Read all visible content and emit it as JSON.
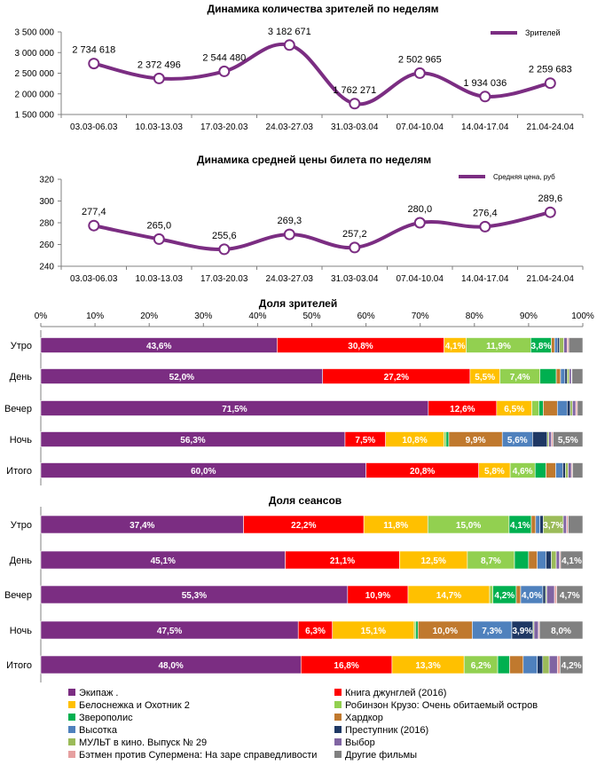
{
  "colors": {
    "line": "#7B2D82",
    "grid": "#d9d9d9",
    "axis": "#808080",
    "text": "#000000",
    "white": "#ffffff"
  },
  "films": [
    {
      "name": "Экипаж .",
      "color": "#7B2D82"
    },
    {
      "name": "Книга джунглей (2016)",
      "color": "#FF0000"
    },
    {
      "name": "Белоснежка и Охотник 2",
      "color": "#FFC000"
    },
    {
      "name": "Робинзон Крузо: Очень обитаемый остров",
      "color": "#92D050"
    },
    {
      "name": "Зверополис",
      "color": "#00B050"
    },
    {
      "name": "Хардкор",
      "color": "#C0792E"
    },
    {
      "name": "Высотка",
      "color": "#4F81BD"
    },
    {
      "name": "Преступник (2016)",
      "color": "#1F3864"
    },
    {
      "name": "МУЛЬТ в кино. Выпуск № 29",
      "color": "#9BBB59"
    },
    {
      "name": "Выбор",
      "color": "#8064A2"
    },
    {
      "name": "Бэтмен против Супермена: На заре справедливости",
      "color": "#E6A0A0"
    },
    {
      "name": "Другие фильмы",
      "color": "#808080"
    }
  ],
  "chart_data": [
    {
      "type": "line",
      "title": "Динамика количества зрителей по неделям",
      "legend": "Зрителей",
      "legend_position": "top-right",
      "categories": [
        "03.03-06.03",
        "10.03-13.03",
        "17.03-20.03",
        "24.03-27.03",
        "31.03-03.04",
        "07.04-10.04",
        "14.04-17.04",
        "21.04-24.04"
      ],
      "values": [
        2734618,
        2372496,
        2544480,
        3182671,
        1762271,
        2502965,
        1934036,
        2259683
      ],
      "labels": [
        "2 734 618",
        "2 372 496",
        "2 544 480",
        "3 182 671",
        "1 762 271",
        "2 502 965",
        "1 934 036",
        "2 259 683"
      ],
      "ylim": [
        1500000,
        3500000
      ],
      "yticks": [
        1500000,
        2000000,
        2500000,
        3000000,
        3500000
      ],
      "ytick_labels": [
        "1 500 000",
        "2 000 000",
        "2 500 000",
        "3 000 000",
        "3 500 000"
      ]
    },
    {
      "type": "line",
      "title": "Динамика средней цены билета по неделям",
      "legend": "Средняя цена, руб",
      "legend_position": "top-right",
      "categories": [
        "03.03-06.03",
        "10.03-13.03",
        "17.03-20.03",
        "24.03-27.03",
        "31.03-03.04",
        "07.04-10.04",
        "14.04-17.04",
        "21.04-24.04"
      ],
      "values": [
        277.4,
        265.0,
        255.6,
        269.3,
        257.2,
        280.0,
        276.4,
        289.6
      ],
      "labels": [
        "277,4",
        "265,0",
        "255,6",
        "269,3",
        "257,2",
        "280,0",
        "276,4",
        "289,6"
      ],
      "ylim": [
        240,
        320
      ],
      "yticks": [
        240,
        260,
        280,
        300,
        320
      ],
      "ytick_labels": [
        "240",
        "260",
        "280",
        "300",
        "320"
      ]
    },
    {
      "type": "bar",
      "orientation": "horizontal-stacked-percent",
      "title": "Доля зрителей",
      "xtick_labels": [
        "0%",
        "10%",
        "20%",
        "30%",
        "40%",
        "50%",
        "60%",
        "70%",
        "80%",
        "90%",
        "100%"
      ],
      "categories": [
        "Утро",
        "День",
        "Вечер",
        "Ночь",
        "Итого"
      ],
      "rows": [
        {
          "values": [
            43.6,
            30.8,
            4.1,
            11.9,
            3.8,
            0.6,
            0.5,
            0.4,
            0.8,
            0.6,
            0.3,
            2.6
          ],
          "labels": [
            "43,6%",
            "30,8%",
            "4,1%",
            "11,9%",
            "3,8%",
            "",
            "",
            "",
            "",
            "",
            "",
            ""
          ]
        },
        {
          "values": [
            52.0,
            27.2,
            5.5,
            7.4,
            3.0,
            0.8,
            0.8,
            0.4,
            0.4,
            0.4,
            0.1,
            2.0
          ],
          "labels": [
            "52,0%",
            "27,2%",
            "5,5%",
            "7,4%",
            "",
            "",
            "",
            "",
            "",
            "",
            "",
            ""
          ]
        },
        {
          "values": [
            71.5,
            12.6,
            6.5,
            1.3,
            0.8,
            2.6,
            1.8,
            0.6,
            0.4,
            0.6,
            0.3,
            1.0
          ],
          "labels": [
            "71,5%",
            "12,6%",
            "6,5%",
            "",
            "",
            "",
            "",
            "",
            "",
            "",
            "",
            ""
          ]
        },
        {
          "values": [
            56.3,
            7.5,
            10.8,
            0.4,
            0.5,
            9.9,
            5.6,
            2.7,
            0.3,
            0.5,
            0.3,
            5.5
          ],
          "labels": [
            "56,3%",
            "7,5%",
            "10,8%",
            "",
            "",
            "9,9%",
            "5,6%",
            "",
            "",
            "",
            "",
            "5,5%"
          ]
        },
        {
          "values": [
            60.0,
            20.8,
            5.8,
            4.6,
            2.0,
            1.8,
            1.3,
            0.5,
            0.5,
            0.6,
            0.2,
            1.9
          ],
          "labels": [
            "60,0%",
            "20,8%",
            "5,8%",
            "4,6%",
            "",
            "",
            "",
            "",
            "",
            "",
            "",
            ""
          ]
        }
      ]
    },
    {
      "type": "bar",
      "orientation": "horizontal-stacked-percent",
      "title": "Доля сеансов",
      "categories": [
        "Утро",
        "День",
        "Вечер",
        "Ночь",
        "Итого"
      ],
      "rows": [
        {
          "values": [
            37.4,
            22.2,
            11.8,
            15.0,
            4.1,
            0.8,
            0.8,
            0.6,
            3.7,
            0.6,
            0.3,
            2.7
          ],
          "labels": [
            "37,4%",
            "22,2%",
            "11,8%",
            "15,0%",
            "4,1%",
            "",
            "",
            "",
            "3,7%",
            "",
            "",
            ""
          ]
        },
        {
          "values": [
            45.1,
            21.1,
            12.5,
            8.7,
            2.6,
            1.6,
            1.6,
            1.0,
            0.9,
            0.6,
            0.2,
            4.1
          ],
          "labels": [
            "45,1%",
            "21,1%",
            "12,5%",
            "8,7%",
            "",
            "",
            "",
            "",
            "",
            "",
            "",
            "4,1%"
          ]
        },
        {
          "values": [
            55.3,
            10.9,
            14.7,
            0.6,
            4.2,
            0.8,
            4.0,
            0.5,
            0.2,
            1.4,
            0.4,
            4.7
          ],
          "labels": [
            "55,3%",
            "10,9%",
            "14,7%",
            "",
            "4,2%",
            "",
            "4,0%",
            "",
            "",
            "",
            "",
            "4,7%"
          ]
        },
        {
          "values": [
            47.5,
            6.3,
            15.1,
            0.3,
            0.4,
            10.0,
            7.3,
            3.9,
            0.2,
            0.8,
            0.2,
            8.0
          ],
          "labels": [
            "47,5%",
            "6,3%",
            "15,1%",
            "",
            "",
            "10,0%",
            "7,3%",
            "3,9%",
            "",
            "",
            "",
            "8,0%"
          ]
        },
        {
          "values": [
            48.0,
            16.8,
            13.3,
            6.2,
            2.2,
            2.5,
            2.6,
            1.0,
            1.2,
            1.5,
            0.5,
            4.2
          ],
          "labels": [
            "48,0%",
            "16,8%",
            "13,3%",
            "6,2%",
            "",
            "",
            "",
            "",
            "",
            "",
            "",
            "4,2%"
          ]
        }
      ]
    }
  ]
}
